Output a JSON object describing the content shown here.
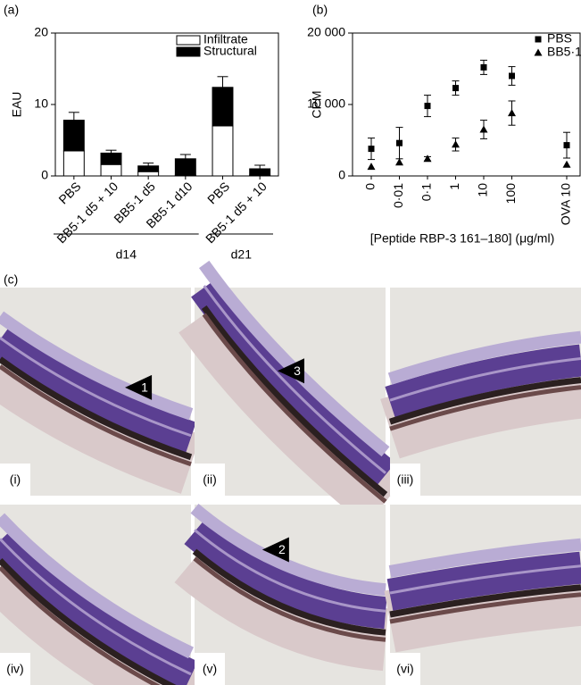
{
  "chart_data": [
    {
      "type": "stacked-bar",
      "panel": "(a)",
      "ylabel": "EAU",
      "categories": [
        "PBS",
        "BB5·1 d5 + 10",
        "BB5·1 d5",
        "BB5·1 d10",
        "PBS",
        "BB5·1 d5 + 10"
      ],
      "groups": [
        {
          "label": "d14",
          "count": 4
        },
        {
          "label": "d21",
          "count": 2
        }
      ],
      "series": [
        {
          "name": "Infiltrate",
          "color": "#ffffff",
          "values": [
            3.5,
            1.6,
            0.6,
            0.1,
            7.0,
            0.1
          ]
        },
        {
          "name": "Structural",
          "color": "#000000",
          "values": [
            4.3,
            1.6,
            0.8,
            2.3,
            5.4,
            0.9
          ],
          "errors": [
            1.1,
            0.4,
            0.4,
            0.6,
            1.5,
            0.5
          ]
        }
      ],
      "ylim": [
        0,
        20
      ],
      "yticks": [
        0,
        10,
        20
      ],
      "legend": "upper-right"
    },
    {
      "type": "scatter",
      "panel": "(b)",
      "ylabel": "CPM",
      "xlabel": "[Peptide RBP-3 161–180] (μg/ml)",
      "categories": [
        "0",
        "0·01",
        "0·1",
        "1",
        "10",
        "100",
        "OVA 10"
      ],
      "series": [
        {
          "name": "PBS",
          "marker": "square",
          "color": "#000000",
          "values": [
            3800,
            4600,
            9800,
            12300,
            15200,
            14000,
            4300
          ],
          "errors": [
            1500,
            2200,
            1500,
            1000,
            1000,
            1300,
            1800
          ]
        },
        {
          "name": "BB5·1",
          "marker": "triangle",
          "color": "#000000",
          "values": [
            1300,
            1900,
            2400,
            4400,
            6500,
            8800,
            1600
          ],
          "errors": [
            null,
            null,
            300,
            900,
            1300,
            1700,
            null
          ]
        }
      ],
      "ylim": [
        0,
        20000
      ],
      "yticks": [
        0,
        {
          "value": 10000,
          "label": "10 000"
        },
        {
          "value": 20000,
          "label": "20 000"
        }
      ],
      "legend": "upper-right"
    }
  ],
  "figure_c": {
    "panel": "(c)",
    "images": [
      {
        "label": "(i)",
        "marker": "1"
      },
      {
        "label": "(ii)",
        "marker": "3"
      },
      {
        "label": "(iii)",
        "marker": null
      },
      {
        "label": "(iv)",
        "marker": null
      },
      {
        "label": "(v)",
        "marker": "2"
      },
      {
        "label": "(vi)",
        "marker": null
      }
    ]
  }
}
